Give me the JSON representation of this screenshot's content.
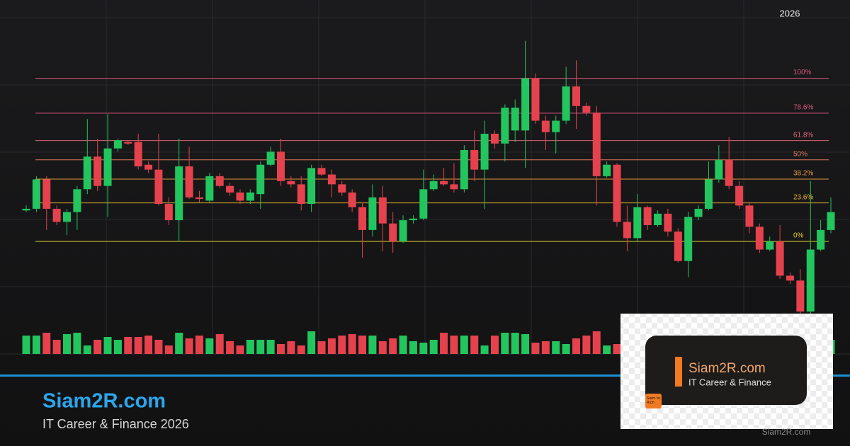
{
  "chart_data": {
    "type": "candlestick",
    "x_label": "2026",
    "ylim": [
      -69,
      148
    ],
    "up_color": "#22c55e",
    "down_color": "#e5424d",
    "open": [
      19,
      20,
      38,
      20,
      12,
      18,
      32,
      52,
      34,
      57,
      61,
      61,
      47,
      44,
      23,
      13,
      46,
      27,
      25,
      40,
      34,
      30,
      25,
      29,
      47,
      55,
      37,
      35,
      23,
      45,
      41,
      35,
      30,
      21,
      7,
      27,
      11,
      0,
      13,
      14,
      32,
      37,
      35,
      32,
      56,
      44,
      66,
      60,
      68,
      68,
      100,
      74,
      67,
      74,
      95,
      83,
      79,
      40,
      47,
      12,
      2,
      21,
      10,
      17,
      6,
      -12,
      15,
      20,
      38,
      50,
      34,
      22,
      9,
      -5,
      0,
      -21,
      -24,
      -43,
      -5,
      7
    ],
    "high": [
      22,
      40,
      40,
      22,
      20,
      34,
      75,
      63,
      78,
      63,
      62,
      66,
      49,
      66,
      27,
      63,
      58,
      31,
      42,
      42,
      36,
      32,
      32,
      49,
      58,
      63,
      40,
      40,
      47,
      47,
      44,
      37,
      32,
      24,
      35,
      34,
      18,
      16,
      16,
      44,
      41,
      45,
      48,
      59,
      68,
      74,
      68,
      84,
      87,
      123,
      103,
      77,
      77,
      107,
      111,
      85,
      83,
      49,
      48,
      22,
      29,
      22,
      19,
      20,
      8,
      18,
      22,
      49,
      59,
      64,
      37,
      24,
      11,
      3,
      10,
      -19,
      -17,
      37,
      13,
      27
    ],
    "low": [
      18,
      18,
      7,
      10,
      4,
      7,
      29,
      31,
      15,
      55,
      59,
      44,
      42,
      22,
      10,
      0,
      26,
      24,
      24,
      33,
      28,
      23,
      23,
      20,
      46,
      34,
      33,
      19,
      18,
      40,
      27,
      28,
      18,
      -10,
      3,
      -6,
      -7,
      -1,
      11,
      13,
      31,
      34,
      30,
      30,
      37,
      20,
      57,
      49,
      61,
      45,
      72,
      56,
      54,
      72,
      69,
      77,
      22,
      39,
      9,
      -6,
      0,
      7,
      9,
      3,
      -13,
      -22,
      13,
      19,
      36,
      32,
      20,
      5,
      -7,
      -6,
      -23,
      -26,
      -45,
      -47,
      -6,
      5
    ],
    "close": [
      20,
      38,
      20,
      12,
      18,
      32,
      52,
      34,
      57,
      62,
      60,
      46,
      44,
      23,
      13,
      46,
      27,
      26,
      40,
      34,
      30,
      25,
      30,
      47,
      55,
      37,
      35,
      23,
      45,
      41,
      35,
      30,
      21,
      7,
      27,
      11,
      0,
      13,
      14,
      32,
      37,
      35,
      32,
      56,
      44,
      66,
      60,
      82,
      82,
      100,
      74,
      67,
      74,
      95,
      83,
      79,
      40,
      47,
      12,
      2,
      21,
      10,
      17,
      6,
      -12,
      15,
      20,
      38,
      50,
      34,
      22,
      9,
      -5,
      0,
      -21,
      -24,
      -43,
      -5,
      7,
      18
    ],
    "volume": [
      26,
      26,
      30,
      20,
      28,
      30,
      12,
      20,
      24,
      20,
      24,
      24,
      26,
      20,
      12,
      30,
      22,
      26,
      22,
      28,
      18,
      12,
      20,
      20,
      20,
      14,
      18,
      12,
      32,
      18,
      22,
      26,
      28,
      26,
      26,
      18,
      22,
      26,
      18,
      16,
      20,
      30,
      26,
      26,
      26,
      12,
      26,
      30,
      30,
      28,
      16,
      18,
      18,
      14,
      22,
      26,
      32,
      12,
      14,
      20,
      18,
      22,
      16,
      24,
      20,
      26,
      14,
      22,
      18,
      20,
      24,
      16,
      22,
      18,
      26,
      20,
      28,
      30,
      22,
      20
    ],
    "levels": [
      {
        "value": 100,
        "label": "100%"
      },
      {
        "value": 78.6,
        "label": "78.6%"
      },
      {
        "value": 61.8,
        "label": "61.8%"
      },
      {
        "value": 50,
        "label": "50%"
      },
      {
        "value": 38.2,
        "label": "38.2%"
      },
      {
        "value": 23.6,
        "label": "23.6%"
      },
      {
        "value": 0,
        "label": "0%"
      }
    ],
    "level_colors": [
      "#d9587a",
      "#d9587a",
      "#dc6276",
      "#df7860",
      "#e6943e",
      "#e8b232",
      "#e6d22e"
    ]
  },
  "footer": {
    "title": "Siam2R.com",
    "subtitle": "IT Career & Finance 2026"
  },
  "overlay": {
    "title": "Siam2R.com",
    "subtitle": "IT Career & Finance",
    "logo": "Siam to Rich"
  },
  "watermark": "Siam2R.com"
}
